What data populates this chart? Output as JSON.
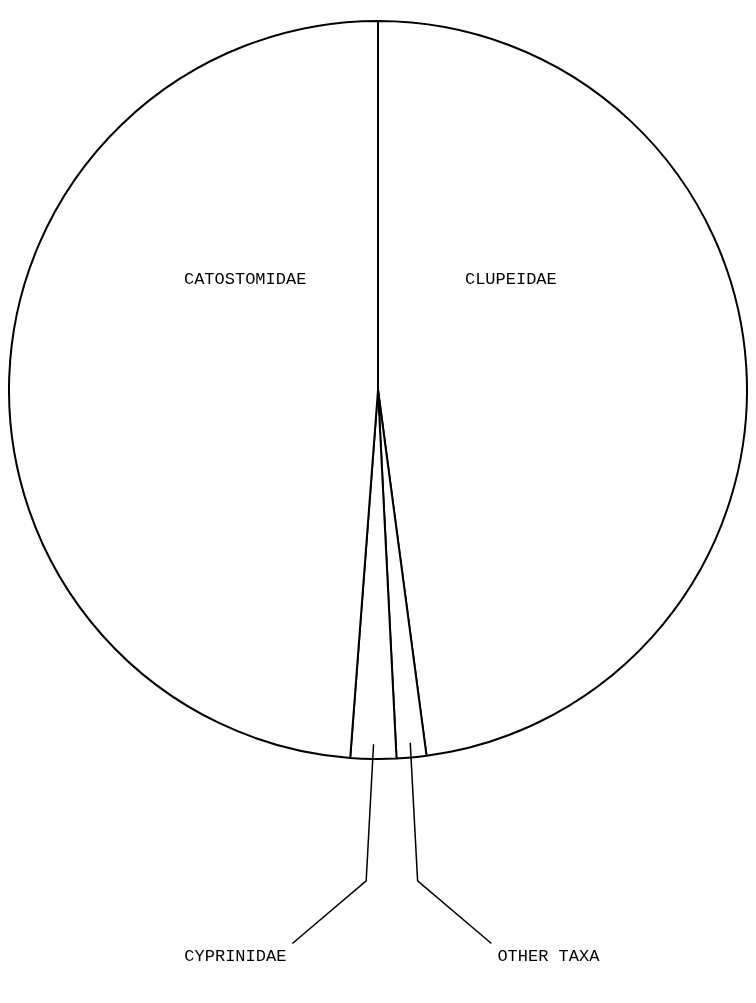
{
  "chart_data": {
    "type": "pie",
    "categories": [
      "CLUPEIDAE",
      "OTHER TAXA",
      "CYPRINIDAE",
      "CATOSTOMIDAE"
    ],
    "values": [
      47.9,
      1.3,
      2.0,
      48.8
    ],
    "colors": [
      "#ffffff",
      "#ffffff",
      "#ffffff",
      "#ffffff"
    ]
  }
}
